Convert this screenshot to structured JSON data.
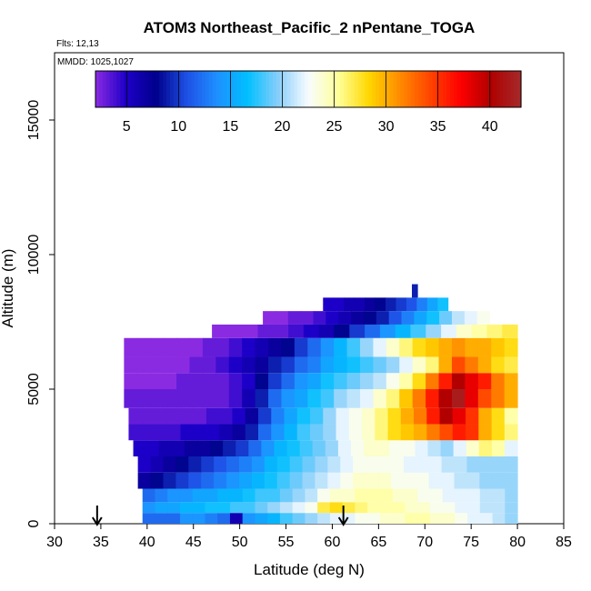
{
  "chart_data": {
    "type": "heatmap",
    "title": "ATOM3 Northeast_Pacific_2 nPentane_TOGA",
    "flights_label": "Flts: 12,13",
    "dates_label": "MMDD: 1025,1027",
    "xlabel": "Latitude (deg N)",
    "ylabel": "Altitude (m)",
    "xlim": [
      30,
      85
    ],
    "ylim": [
      0,
      17500
    ],
    "xticks": [
      "30",
      "35",
      "40",
      "45",
      "50",
      "55",
      "60",
      "65",
      "70",
      "75",
      "80",
      "85"
    ],
    "yticks": [
      "0",
      "5000",
      "10000",
      "15000"
    ],
    "colorbar": {
      "range": [
        2,
        43
      ],
      "ticks": [
        "5",
        "10",
        "15",
        "20",
        "25",
        "30",
        "35",
        "40"
      ],
      "colors": [
        "#8a2be2",
        "#1e00c8",
        "#00008b",
        "#1e50e6",
        "#1e90ff",
        "#00bfff",
        "#87cefa",
        "#f8fcff",
        "#ffff99",
        "#ffd700",
        "#ff8c00",
        "#ff4500",
        "#ff0000",
        "#b00000",
        "#a52a2a"
      ]
    },
    "arrow_latitudes": [
      34.6,
      61.2
    ],
    "rows": [
      {
        "y": [
          0,
          400
        ],
        "x": [
          39.5,
          80
        ],
        "v": [
          12,
          12,
          12,
          14,
          14,
          13,
          12,
          6,
          14,
          15,
          16,
          18,
          19,
          20,
          21,
          22,
          22,
          23,
          23,
          24,
          24,
          25,
          25,
          24,
          24,
          23,
          22,
          22,
          21,
          20
        ]
      },
      {
        "y": [
          400,
          800
        ],
        "x": [
          39.5,
          80
        ],
        "v": [
          14,
          15,
          15,
          16,
          16,
          17,
          17,
          18,
          18,
          19,
          20,
          21,
          22,
          23,
          27,
          28,
          27,
          26,
          25,
          25,
          25,
          24,
          24,
          23,
          23,
          22,
          22,
          21,
          21,
          20
        ]
      },
      {
        "y": [
          800,
          1300
        ],
        "x": [
          39.5,
          80
        ],
        "v": [
          12,
          13,
          14,
          14,
          15,
          15,
          16,
          16,
          17,
          18,
          18,
          19,
          20,
          21,
          23,
          24,
          24,
          25,
          25,
          25,
          24,
          24,
          23,
          23,
          22,
          22,
          22,
          21,
          21,
          20
        ]
      },
      {
        "y": [
          1300,
          1900
        ],
        "x": [
          39,
          80
        ],
        "v": [
          7,
          8,
          9,
          10,
          11,
          12,
          13,
          14,
          15,
          16,
          17,
          18,
          19,
          20,
          21,
          22,
          23,
          24,
          24,
          24,
          23,
          23,
          23,
          22,
          22,
          21,
          21,
          20,
          20,
          20
        ]
      },
      {
        "y": [
          1900,
          2500
        ],
        "x": [
          39,
          80
        ],
        "v": [
          5,
          6,
          7,
          8,
          9,
          10,
          11,
          12,
          13,
          14,
          16,
          17,
          18,
          19,
          20,
          21,
          22,
          23,
          23,
          23,
          23,
          22,
          22,
          22,
          21,
          21,
          20,
          20,
          20,
          20
        ]
      },
      {
        "y": [
          2500,
          3100
        ],
        "x": [
          38.5,
          80
        ],
        "v": [
          5,
          5,
          6,
          6,
          7,
          7,
          8,
          9,
          10,
          12,
          14,
          16,
          17,
          18,
          19,
          20,
          22,
          23,
          24,
          24,
          23,
          23,
          22,
          21,
          20,
          22,
          24,
          26,
          25,
          22
        ]
      },
      {
        "y": [
          3100,
          3700
        ],
        "x": [
          38,
          80
        ],
        "v": [
          4,
          4,
          4,
          4,
          5,
          5,
          5,
          6,
          7,
          9,
          12,
          14,
          16,
          18,
          19,
          20,
          22,
          23,
          24,
          26,
          28,
          29,
          30,
          32,
          34,
          36,
          35,
          30,
          28,
          26
        ]
      },
      {
        "y": [
          3700,
          4300
        ],
        "x": [
          38,
          80
        ],
        "v": [
          3,
          3,
          3,
          3,
          3,
          3,
          4,
          4,
          5,
          7,
          10,
          13,
          15,
          17,
          18,
          20,
          22,
          23,
          24,
          26,
          28,
          30,
          32,
          36,
          40,
          38,
          35,
          30,
          28,
          25
        ]
      },
      {
        "y": [
          4300,
          5000
        ],
        "x": [
          37.5,
          80
        ],
        "v": [
          3,
          3,
          3,
          3,
          3,
          3,
          3,
          3,
          4,
          6,
          9,
          12,
          14,
          15,
          17,
          18,
          20,
          21,
          22,
          24,
          26,
          29,
          32,
          36,
          40,
          42,
          38,
          34,
          32,
          30
        ]
      },
      {
        "y": [
          5000,
          5600
        ],
        "x": [
          37.5,
          80
        ],
        "v": [
          2,
          2,
          2,
          2,
          3,
          3,
          3,
          3,
          4,
          5,
          8,
          10,
          12,
          14,
          15,
          17,
          18,
          19,
          20,
          21,
          23,
          25,
          28,
          32,
          36,
          40,
          38,
          36,
          32,
          30
        ]
      },
      {
        "y": [
          5600,
          6200
        ],
        "x": [
          37.5,
          80
        ],
        "v": [
          2,
          2,
          2,
          2,
          2,
          3,
          3,
          4,
          5,
          6,
          7,
          9,
          10,
          12,
          13,
          15,
          16,
          17,
          18,
          19,
          20,
          22,
          24,
          26,
          30,
          34,
          32,
          30,
          28,
          27
        ]
      },
      {
        "y": [
          6200,
          6900
        ],
        "x": [
          37.5,
          80
        ],
        "v": [
          2,
          2,
          2,
          2,
          2,
          2,
          3,
          3,
          4,
          5,
          6,
          7,
          8,
          10,
          12,
          14,
          16,
          18,
          20,
          22,
          24,
          26,
          28,
          29,
          30,
          31,
          30,
          30,
          29,
          28
        ]
      },
      {
        "y": [
          6900,
          7400
        ],
        "x": [
          47,
          80
        ],
        "v": [
          2,
          2,
          2,
          3,
          3,
          4,
          5,
          6,
          8,
          10,
          12,
          14,
          16,
          18,
          20,
          22,
          24,
          25,
          26,
          27
        ]
      },
      {
        "y": [
          7400,
          7900
        ],
        "x": [
          52.5,
          77
        ],
        "v": [
          2,
          2,
          3,
          3,
          4,
          5,
          6,
          7,
          8,
          9,
          11,
          13,
          15,
          17,
          19,
          21,
          22,
          23
        ]
      },
      {
        "y": [
          7900,
          8400
        ],
        "x": [
          59,
          72.5
        ],
        "v": [
          5,
          5,
          6,
          6,
          7,
          8,
          9,
          10,
          11,
          13,
          15,
          17
        ]
      },
      {
        "y": [
          8400,
          8900
        ],
        "x": [
          68.6,
          69.2
        ],
        "v": [
          9
        ]
      }
    ]
  }
}
